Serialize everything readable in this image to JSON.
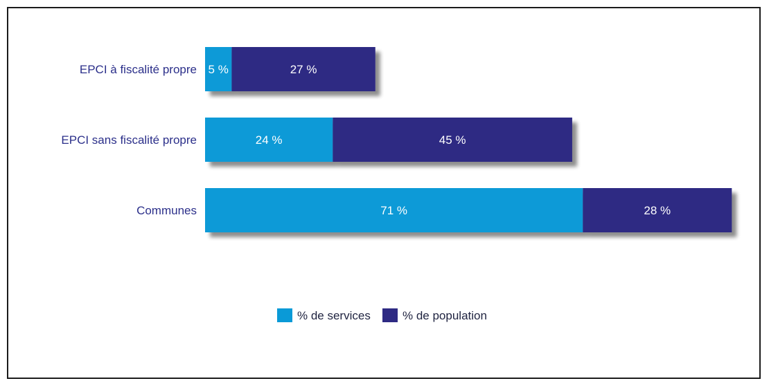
{
  "chart_data": {
    "type": "bar",
    "orientation": "horizontal",
    "stacked": true,
    "categories": [
      "EPCI à fiscalité propre",
      "EPCI sans fiscalité propre",
      "Communes"
    ],
    "series": [
      {
        "name": "% de services",
        "values": [
          5,
          24,
          71
        ],
        "labels": [
          "5 %",
          "24 %",
          "71 %"
        ],
        "color": "#0a9ad7"
      },
      {
        "name": "% de population",
        "values": [
          27,
          45,
          28
        ],
        "labels": [
          "27 %",
          "45 %",
          "28 %"
        ],
        "color": "#2e2a83"
      }
    ],
    "unit": "%",
    "xlim": [
      0,
      100
    ],
    "grid": false,
    "legend": "bottom-center",
    "title": "",
    "xlabel": "",
    "ylabel": ""
  }
}
